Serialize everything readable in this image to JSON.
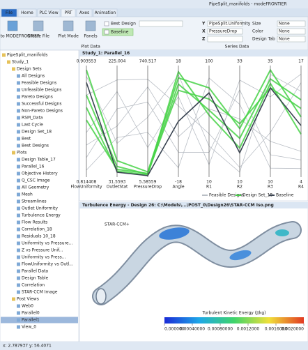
{
  "window": {
    "title": "PipeSplit_manifolds - modeFRONTIER"
  },
  "tabs": [
    "File",
    "Home",
    "PLC View",
    "PRT",
    "Axes",
    "Animation"
  ],
  "ribbon": {
    "buttons": [
      "Return to MODEFRONTIER",
      "Create File",
      "Plot Mode",
      "Panels"
    ],
    "checkboxes": [
      "Best Design",
      "Baseline"
    ],
    "axis_fields": [
      {
        "label": "Y",
        "value": "PipeSplit.Uniformity"
      },
      {
        "label": "X",
        "value": "PressureDrop"
      },
      {
        "label": "Z",
        "value": ""
      }
    ],
    "series_fields": [
      {
        "label": "Size",
        "value": "None"
      },
      {
        "label": "Color",
        "value": "None"
      },
      {
        "label": "Design Tab",
        "value": "None"
      }
    ],
    "groups": [
      "Plot Data",
      "Series Data"
    ]
  },
  "tree": {
    "label": "PipeSplit_manifolds",
    "children": [
      {
        "label": "Study_1",
        "children": [
          {
            "label": "Design Sets",
            "children": [
              {
                "label": "All Designs"
              },
              {
                "label": "Feasible Designs"
              },
              {
                "label": "Unfeasible Designs"
              },
              {
                "label": "Pareto Designs"
              },
              {
                "label": "Successful Designs"
              },
              {
                "label": "Non-Pareto Designs"
              },
              {
                "label": "RSM_Data"
              },
              {
                "label": "Last Cycle"
              },
              {
                "label": "Design Set_18"
              },
              {
                "label": "Best"
              },
              {
                "label": "Best Designs"
              }
            ]
          },
          {
            "label": "Plots",
            "children": [
              {
                "label": "Design Table_17"
              },
              {
                "label": "Parallel_16"
              },
              {
                "label": "Objective History"
              },
              {
                "label": "Q_CSC Image"
              },
              {
                "label": "All Geometry"
              },
              {
                "label": "Mesh"
              },
              {
                "label": "Streamlines"
              },
              {
                "label": "Outlet Uniformity"
              },
              {
                "label": "Turbulence Energy"
              },
              {
                "label": "Flow Results"
              },
              {
                "label": "Correlation_18"
              },
              {
                "label": "Residuals 10_18"
              },
              {
                "label": "Uniformity vs Pressure..."
              },
              {
                "label": "Z vs Pressure Unif..."
              },
              {
                "label": "Uniformity vs Press..."
              },
              {
                "label": "FlowUniformity vs Outl..."
              },
              {
                "label": "Parallel Data"
              },
              {
                "label": "Design Table"
              },
              {
                "label": "Correlation"
              },
              {
                "label": "STAR-CCM Image"
              }
            ]
          },
          {
            "label": "Post Views",
            "children": [
              {
                "label": "Web0"
              },
              {
                "label": "Parallel0"
              },
              {
                "label": "Parallel1",
                "selected": true
              },
              {
                "label": "View_0"
              }
            ]
          }
        ]
      }
    ]
  },
  "chart_data": {
    "type": "parallel",
    "title": "Study_1: Parallel_16",
    "axes": [
      {
        "name": "FlowUniformity",
        "lim": [
          0.814408,
          0.903553
        ]
      },
      {
        "name": "OutletStat",
        "lim": [
          31.5593,
          225.004
        ]
      },
      {
        "name": "PressureDrop",
        "lim": [
          5.58559,
          740.517
        ]
      },
      {
        "name": "Angle",
        "lim": [
          -18,
          18
        ]
      },
      {
        "name": "R1",
        "lim": [
          10,
          100
        ]
      },
      {
        "name": "R2",
        "lim": [
          10,
          33
        ]
      },
      {
        "name": "R3",
        "lim": [
          10,
          35
        ]
      },
      {
        "name": "R4",
        "lim": [
          4,
          17
        ]
      }
    ],
    "series": [
      {
        "name": "Feasible Designs",
        "color": "#b9bec5",
        "lines": [
          [
            0.83,
            150,
            500,
            -10,
            30,
            28,
            15,
            6
          ],
          [
            0.88,
            200,
            650,
            5,
            45,
            12,
            20,
            15
          ],
          [
            0.82,
            100,
            300,
            -15,
            90,
            25,
            12,
            5
          ],
          [
            0.85,
            180,
            200,
            8,
            20,
            30,
            28,
            16
          ],
          [
            0.84,
            120,
            600,
            -5,
            65,
            22,
            18,
            7
          ],
          [
            0.895,
            90,
            400,
            15,
            35,
            11,
            33,
            14
          ]
        ]
      },
      {
        "name": "Design Set_18",
        "color": "#46d246",
        "lines": [
          [
            0.9,
            60,
            40,
            14,
            82,
            20,
            34,
            11
          ],
          [
            0.88,
            50,
            25,
            12,
            64,
            18,
            32,
            13
          ],
          [
            0.87,
            42,
            20,
            16,
            60,
            16,
            31,
            9
          ],
          [
            0.86,
            45,
            30,
            10,
            73,
            21,
            30,
            12
          ]
        ]
      },
      {
        "name": "Baseline",
        "color": "#3a4452",
        "lines": [
          [
            0.89,
            40,
            15,
            0,
            78,
            15,
            30,
            10
          ]
        ]
      }
    ]
  },
  "image_panel": {
    "title": "Turbulence Energy - Design 26: C:\\Models\\...\\POST_0\\Design26\\STAR-CCM Iso.png",
    "logo": "STAR-CCM+",
    "colorbar": {
      "title": "Turbulent Kinetic Energy (J/kg)",
      "lim": [
        0,
        0.002
      ],
      "ticks": [
        {
          "value": 0,
          "label": "0.000000"
        },
        {
          "value": 0.0004,
          "label": "0.00040000"
        },
        {
          "value": 0.0008,
          "label": "0.00080000"
        },
        {
          "value": 0.0012,
          "label": "0.0012000"
        },
        {
          "value": 0.0016,
          "label": "0.0016000"
        },
        {
          "value": 0.002,
          "label": "0.0020000"
        }
      ]
    }
  },
  "status": "x: 2.787937  y: 56.4071"
}
